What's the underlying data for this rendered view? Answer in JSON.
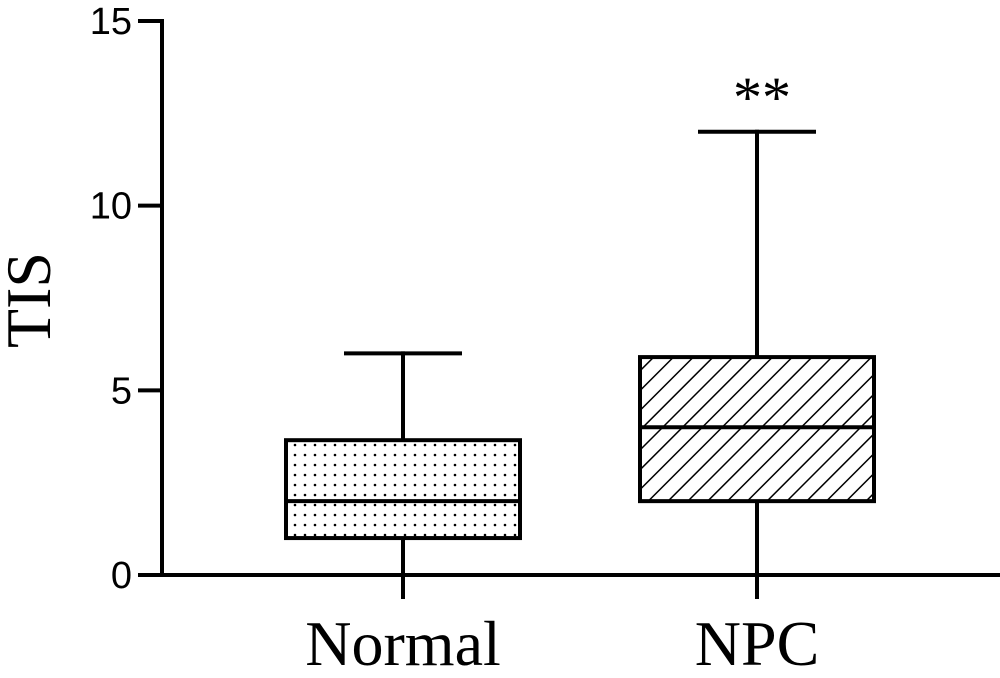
{
  "chart_data": {
    "type": "box",
    "title": "",
    "xlabel": "",
    "ylabel": "TIS",
    "ylim": [
      0,
      15
    ],
    "yticks": [
      0,
      5,
      10,
      15
    ],
    "grid": false,
    "categories": [
      "Normal",
      "NPC"
    ],
    "boxes": [
      {
        "category": "Normal",
        "min": 0,
        "q1": 1,
        "median": 2,
        "q3": 3.65,
        "max": 6,
        "fill_pattern": "dots"
      },
      {
        "category": "NPC",
        "min": 0,
        "q1": 2,
        "median": 4,
        "q3": 5.9,
        "max": 12,
        "fill_pattern": "diagonal-hatch",
        "annotation": "**"
      }
    ]
  }
}
